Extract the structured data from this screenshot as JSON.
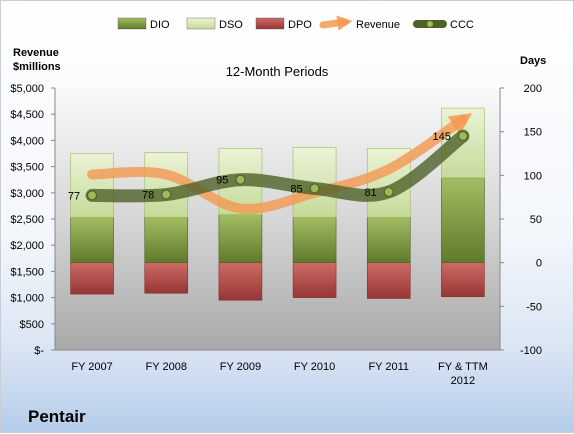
{
  "company": "Pentair",
  "chart_data": {
    "type": "bar",
    "title": "12-Month Periods",
    "categories": [
      "FY 2007",
      "FY 2008",
      "FY 2009",
      "FY 2010",
      "FY 2011",
      "FY & TTM 2012"
    ],
    "y_left": {
      "label_line1": "Revenue",
      "label_line2": "$millions",
      "lim": [
        0,
        5000
      ],
      "ticks": [
        "$-",
        "$500",
        "$1,000",
        "$1,500",
        "$2,000",
        "$2,500",
        "$3,000",
        "$3,500",
        "$4,000",
        "$4,500",
        "$5,000"
      ]
    },
    "y_right": {
      "label": "Days",
      "lim": [
        -100,
        200
      ],
      "ticks": [
        "-100",
        "-50",
        "0",
        "50",
        "100",
        "150",
        "200"
      ]
    },
    "legend_position": "top",
    "grid": false,
    "series": [
      {
        "name": "DIO",
        "kind": "stacked-bar",
        "axis": "right",
        "color": "#77933c",
        "values": [
          52,
          52,
          55,
          52,
          52,
          97
        ]
      },
      {
        "name": "DSO",
        "kind": "stacked-bar",
        "axis": "right",
        "color": "#d7e4bd",
        "values": [
          73,
          74,
          76,
          80,
          79,
          80
        ]
      },
      {
        "name": "DPO",
        "kind": "negative-bar",
        "axis": "right",
        "color": "#c0504d",
        "values": [
          -36,
          -35,
          -43,
          -40,
          -41,
          -39
        ]
      },
      {
        "name": "Revenue",
        "kind": "line",
        "axis": "left",
        "color": "#f39a54",
        "values": [
          3350,
          3350,
          2700,
          3000,
          3450,
          4400
        ]
      },
      {
        "name": "CCC",
        "kind": "line-markers",
        "axis": "right",
        "color": "#4f6228",
        "values": [
          77,
          78,
          95,
          85,
          81,
          145
        ],
        "data_labels": [
          "77",
          "78",
          "95",
          "85",
          "81",
          "145"
        ]
      }
    ]
  }
}
